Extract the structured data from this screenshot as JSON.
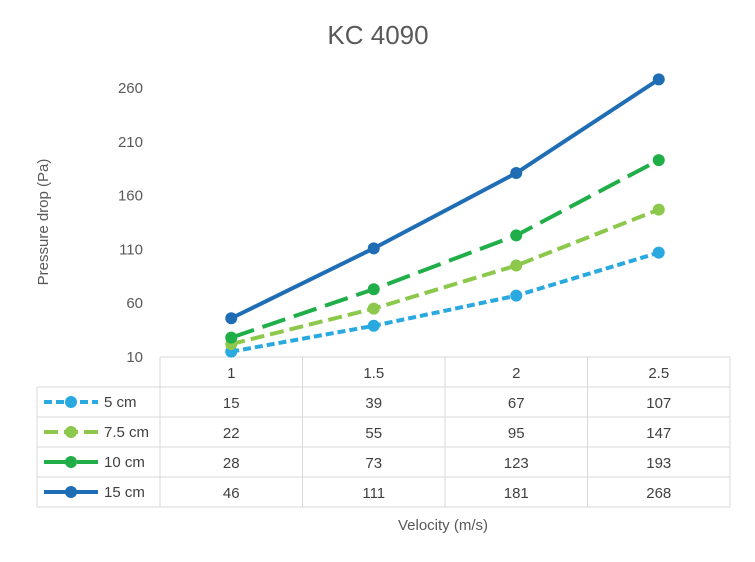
{
  "chart_data": {
    "type": "line",
    "title": "KC 4090",
    "xlabel": "Velocity (m/s)",
    "ylabel": "Pressure drop (Pa)",
    "categories": [
      "1",
      "1.5",
      "2",
      "2.5"
    ],
    "ylim": [
      10,
      268
    ],
    "yticks": [
      "10",
      "60",
      "110",
      "160",
      "210",
      "260"
    ],
    "gridlines": false,
    "data_table": true,
    "series": [
      {
        "name": "5 cm",
        "values": [
          15,
          39,
          67,
          107
        ],
        "color": "#29a9e0",
        "dash": "short-dash"
      },
      {
        "name": "7.5 cm",
        "values": [
          22,
          55,
          95,
          147
        ],
        "color": "#8cc84b",
        "dash": "dash"
      },
      {
        "name": "10 cm",
        "values": [
          28,
          73,
          123,
          193
        ],
        "color": "#1fae48",
        "dash": "long-dash"
      },
      {
        "name": "15 cm",
        "values": [
          46,
          111,
          181,
          268
        ],
        "color": "#1f6eb5",
        "dash": "solid"
      }
    ]
  }
}
